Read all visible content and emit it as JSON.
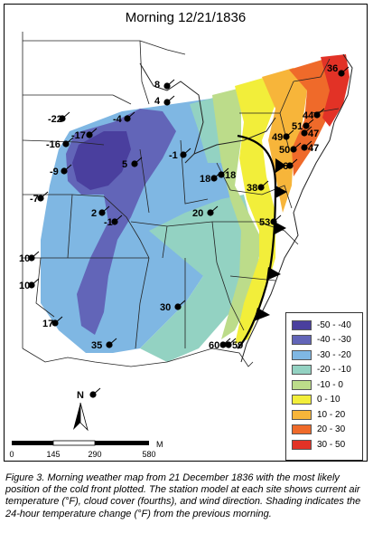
{
  "map": {
    "title": "Morning 12/21/1836",
    "north_label": "N",
    "scale": {
      "labels": [
        "0",
        "145",
        "290",
        "580"
      ],
      "unit": "M"
    },
    "legend": [
      {
        "label": "-50 - -40",
        "color": "#4a3f9e"
      },
      {
        "label": "-40 - -30",
        "color": "#6265b8"
      },
      {
        "label": "-30 - -20",
        "color": "#7fb7e3"
      },
      {
        "label": "-20 - -10",
        "color": "#93d2c2"
      },
      {
        "label": "-10 - 0",
        "color": "#bcdc8a"
      },
      {
        "label": "0 - 10",
        "color": "#f2ee3a"
      },
      {
        "label": "10 - 20",
        "color": "#f7b53a"
      },
      {
        "label": "20 - 30",
        "color": "#ef6a2a"
      },
      {
        "label": "30 - 50",
        "color": "#e23226"
      }
    ],
    "stations": [
      {
        "value": "36"
      },
      {
        "value": "8"
      },
      {
        "value": "4"
      },
      {
        "value": "-22"
      },
      {
        "value": "-4"
      },
      {
        "value": "-17"
      },
      {
        "value": "-16"
      },
      {
        "value": "-9"
      },
      {
        "value": "5"
      },
      {
        "value": "-1"
      },
      {
        "value": "44"
      },
      {
        "value": "51"
      },
      {
        "value": "49"
      },
      {
        "value": "47"
      },
      {
        "value": "50"
      },
      {
        "value": "47"
      },
      {
        "value": "36"
      },
      {
        "value": "18"
      },
      {
        "value": "18"
      },
      {
        "value": "38"
      },
      {
        "value": "-7"
      },
      {
        "value": "2"
      },
      {
        "value": "-1"
      },
      {
        "value": "20"
      },
      {
        "value": "53"
      },
      {
        "value": "10"
      },
      {
        "value": "10"
      },
      {
        "value": "30"
      },
      {
        "value": "17"
      },
      {
        "value": "35"
      },
      {
        "value": "60"
      },
      {
        "value": "59"
      }
    ]
  },
  "caption": {
    "figure_label": "Figure 3.",
    "text": " Morning weather map from 21 December 1836 with the most likely position of the cold front plotted.  The station model at each site shows current air temperature (°F), cloud cover (fourths), and wind direction. Shading indicates the 24-hour temperature change (°F) from the previous morning."
  }
}
